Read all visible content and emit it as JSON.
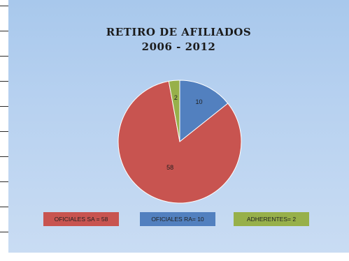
{
  "chart_data": {
    "type": "pie",
    "title": "RETIRO DE AFILIADOS",
    "subtitle": "2006 - 2012",
    "slices": [
      {
        "label": "OFICIALES SA",
        "value": 58,
        "data_label": "58",
        "legend": "OFICIALES SA = 58",
        "color": "#c85450"
      },
      {
        "label": "OFICIALES RA",
        "value": 10,
        "data_label": "10",
        "legend": "OFICIALES RA= 10",
        "color": "#5280bf"
      },
      {
        "label": "ADHERENTES",
        "value": 2,
        "data_label": "2",
        "legend": "ADHERENTES= 2",
        "color": "#97b04a"
      }
    ],
    "legend_placement": "bottom"
  },
  "colors": {
    "background": "#b7d1f0",
    "title": "#1b1b1b"
  }
}
